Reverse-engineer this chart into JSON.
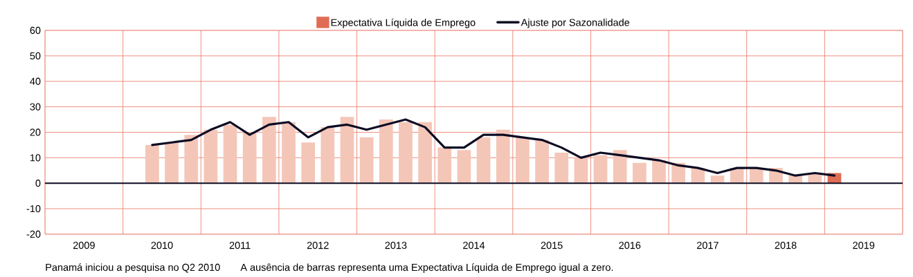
{
  "chart_data": {
    "type": "bar",
    "xlim": [
      2009,
      2020
    ],
    "ylim": [
      -20,
      60
    ],
    "xticks": [
      {
        "value": 2009,
        "label": null
      },
      {
        "value": 2009.5,
        "label": "2009"
      },
      {
        "value": 2010,
        "label": null
      },
      {
        "value": 2010.5,
        "label": "2010"
      },
      {
        "value": 2011,
        "label": null
      },
      {
        "value": 2011.5,
        "label": "2011"
      },
      {
        "value": 2012,
        "label": null
      },
      {
        "value": 2012.5,
        "label": "2012"
      },
      {
        "value": 2013,
        "label": null
      },
      {
        "value": 2013.5,
        "label": "2013"
      },
      {
        "value": 2014,
        "label": null
      },
      {
        "value": 2014.5,
        "label": "2014"
      },
      {
        "value": 2015,
        "label": null
      },
      {
        "value": 2015.5,
        "label": "2015"
      },
      {
        "value": 2016,
        "label": null
      },
      {
        "value": 2016.5,
        "label": "2016"
      },
      {
        "value": 2017,
        "label": null
      },
      {
        "value": 2017.5,
        "label": "2017"
      },
      {
        "value": 2018,
        "label": null
      },
      {
        "value": 2018.5,
        "label": "2018"
      },
      {
        "value": 2019,
        "label": null
      },
      {
        "value": 2019.5,
        "label": "2019"
      },
      {
        "value": 2020,
        "label": null
      }
    ],
    "yticks": [
      -20,
      -10,
      0,
      10,
      20,
      30,
      40,
      50,
      60
    ],
    "x": [
      2010.375,
      2010.625,
      2010.875,
      2011.125,
      2011.375,
      2011.625,
      2011.875,
      2012.125,
      2012.375,
      2012.625,
      2012.875,
      2013.125,
      2013.375,
      2013.625,
      2013.875,
      2014.125,
      2014.375,
      2014.625,
      2014.875,
      2015.125,
      2015.375,
      2015.625,
      2015.875,
      2016.125,
      2016.375,
      2016.625,
      2016.875,
      2017.125,
      2017.375,
      2017.625,
      2017.875,
      2018.125,
      2018.375,
      2018.625,
      2018.875,
      2019.125
    ],
    "series": [
      {
        "name": "Expectativa Líquida de Emprego",
        "color": "#e06c55",
        "values": [
          15,
          16,
          19,
          21,
          23,
          20,
          26,
          24,
          16,
          22,
          26,
          18,
          25,
          24,
          24,
          14,
          13,
          18,
          21,
          18,
          17,
          12,
          10,
          11,
          13,
          8,
          9,
          8,
          6,
          3,
          6,
          6,
          6,
          3,
          4,
          4
        ],
        "colors": [
          "#f4c6b8",
          "#f4c6b8",
          "#f4c6b8",
          "#f4c6b8",
          "#f4c6b8",
          "#f4c6b8",
          "#f4c6b8",
          "#f4c6b8",
          "#f4c6b8",
          "#f4c6b8",
          "#f4c6b8",
          "#f4c6b8",
          "#f4c6b8",
          "#f4c6b8",
          "#f4c6b8",
          "#f4c6b8",
          "#f4c6b8",
          "#f4c6b8",
          "#f4c6b8",
          "#f4c6b8",
          "#f4c6b8",
          "#f4c6b8",
          "#f4c6b8",
          "#f4c6b8",
          "#f4c6b8",
          "#f4c6b8",
          "#f4c6b8",
          "#f4c6b8",
          "#f4c6b8",
          "#f4c6b8",
          "#f4c6b8",
          "#f4c6b8",
          "#f4c6b8",
          "#f4c6b8",
          "#f4c6b8",
          "#e06c55"
        ]
      },
      {
        "name": "Ajuste por Sazonalidade",
        "type": "line",
        "color": "#0b0b23",
        "values": [
          15,
          16,
          17,
          21,
          24,
          19,
          23,
          24,
          18,
          22,
          23,
          21,
          23,
          25,
          22,
          14,
          14,
          19,
          19,
          18,
          17,
          14,
          10,
          12,
          11,
          10,
          9,
          7,
          6,
          4,
          6,
          6,
          5,
          3,
          4,
          3
        ]
      }
    ],
    "ref_lines": [
      {
        "axis": "y",
        "value": 0,
        "color": "#0b0b23"
      }
    ],
    "grid": true,
    "legend": "top",
    "annotations": [
      "Panamá iniciou a pesquisa no Q2 2010",
      "A ausência de barras representa uma Expectativa Líquida de Emprego igual a zero."
    ]
  }
}
